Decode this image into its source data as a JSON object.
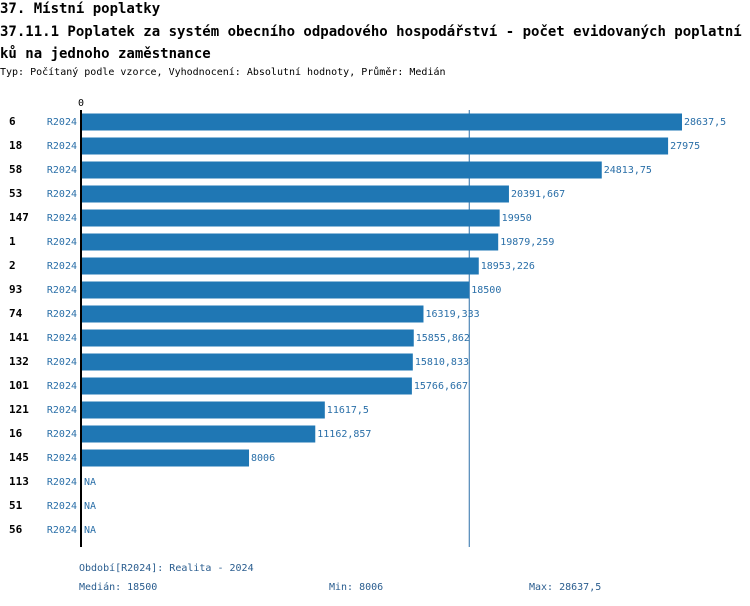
{
  "header": {
    "section": "37. Místní poplatky",
    "indicator": "37.11.1 Poplatek za systém obecního odpadového hospodářství - počet evidovaných poplatníků na jednoho zaměstnance",
    "subtitle": "Typ: Počítaný podle vzorce, Vyhodnocení: Absolutní hodnoty, Průměr: Medián"
  },
  "colors": {
    "bar": "#1f77b4",
    "label": "#2a6fa8",
    "median_line": "#2a6fa8",
    "axis": "#000000"
  },
  "chart_data": {
    "type": "bar",
    "orientation": "horizontal",
    "axis_zero_label": "0",
    "median": 18500,
    "series_label": "R2024",
    "rows": [
      {
        "id": "6",
        "label": "28637,5",
        "value": 28637.5
      },
      {
        "id": "18",
        "label": "27975",
        "value": 27975
      },
      {
        "id": "58",
        "label": "24813,75",
        "value": 24813.75
      },
      {
        "id": "53",
        "label": "20391,667",
        "value": 20391.667
      },
      {
        "id": "147",
        "label": "19950",
        "value": 19950
      },
      {
        "id": "1",
        "label": "19879,259",
        "value": 19879.259
      },
      {
        "id": "2",
        "label": "18953,226",
        "value": 18953.226
      },
      {
        "id": "93",
        "label": "18500",
        "value": 18500
      },
      {
        "id": "74",
        "label": "16319,333",
        "value": 16319.333
      },
      {
        "id": "141",
        "label": "15855,862",
        "value": 15855.862
      },
      {
        "id": "132",
        "label": "15810,833",
        "value": 15810.833
      },
      {
        "id": "101",
        "label": "15766,667",
        "value": 15766.667
      },
      {
        "id": "121",
        "label": "11617,5",
        "value": 11617.5
      },
      {
        "id": "16",
        "label": "11162,857",
        "value": 11162.857
      },
      {
        "id": "145",
        "label": "8006",
        "value": 8006
      },
      {
        "id": "113",
        "label": "NA",
        "value": null
      },
      {
        "id": "51",
        "label": "NA",
        "value": null
      },
      {
        "id": "56",
        "label": "NA",
        "value": null
      }
    ]
  },
  "footer": {
    "period": "Období[R2024]: Realita - 2024",
    "median": "Medián: 18500",
    "min": "Min: 8006",
    "max": "Max: 28637,5"
  }
}
